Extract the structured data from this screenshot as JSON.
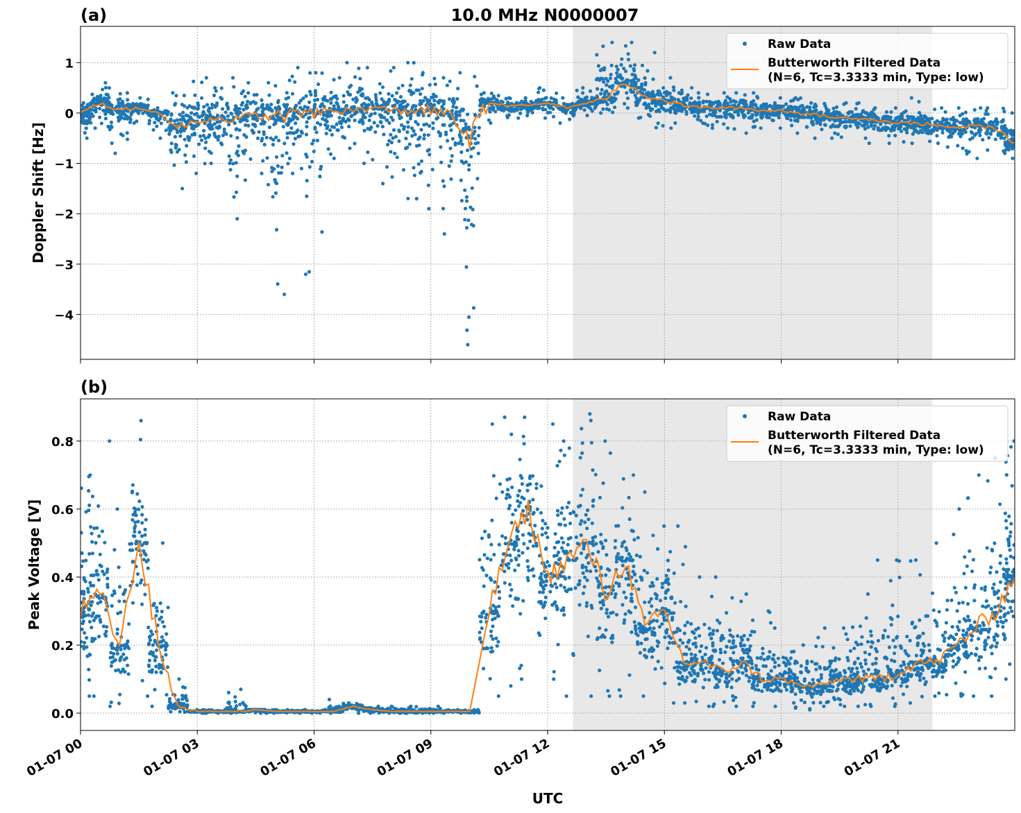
{
  "title": "10.0 MHz N0000007",
  "colors": {
    "raw": "#1f77b4",
    "filtered": "#ff7f0e",
    "shade": "#e8e8e8"
  },
  "x_axis": {
    "label": "UTC",
    "ticks": [
      "01-07 00",
      "01-07 03",
      "01-07 06",
      "01-07 09",
      "01-07 12",
      "01-07 15",
      "01-07 18",
      "01-07 21"
    ],
    "tick_hours": [
      0,
      3,
      6,
      9,
      12,
      15,
      18,
      21
    ],
    "xlim_hours": [
      0,
      24
    ]
  },
  "shaded_span": [
    "12:39",
    "21:53"
  ],
  "legend": {
    "raw": "Raw Data",
    "filtered_line1": "Butterworth Filtered Data",
    "filtered_line2": "(N=6, Tc=3.3333 min, Type: low)",
    "placement": "upper right"
  },
  "chart_data": [
    {
      "type": "scatter+line",
      "panel_label": "(a)",
      "ylabel": "Doppler Shift [Hz]",
      "ylim": [
        -4.89,
        1.72
      ],
      "yticks": [
        1,
        0,
        -1,
        -2,
        -3,
        -4
      ],
      "ytick_labels": [
        "1",
        "0",
        "−1",
        "−2",
        "−3",
        "−4"
      ],
      "grid": true,
      "x": [
        "00:00",
        "00:30",
        "01:00",
        "01:30",
        "02:00",
        "02:30",
        "03:00",
        "03:30",
        "04:00",
        "04:30",
        "05:00",
        "05:30",
        "06:00",
        "06:30",
        "07:00",
        "07:30",
        "08:00",
        "08:30",
        "09:00",
        "09:30",
        "10:00",
        "10:30",
        "11:00",
        "11:30",
        "12:00",
        "12:30",
        "13:00",
        "13:30",
        "14:00",
        "14:30",
        "15:00",
        "15:30",
        "16:00",
        "16:30",
        "17:00",
        "17:30",
        "18:00",
        "18:30",
        "19:00",
        "19:30",
        "20:00",
        "20:30",
        "21:00",
        "21:30",
        "22:00",
        "22:30",
        "23:00",
        "23:30",
        "24:00"
      ],
      "filtered": [
        0.0,
        0.2,
        0.05,
        0.1,
        0.0,
        -0.3,
        -0.15,
        -0.1,
        -0.15,
        -0.05,
        -0.1,
        0.0,
        0.0,
        0.05,
        0.05,
        0.1,
        0.05,
        0.05,
        0.05,
        -0.05,
        -0.5,
        0.2,
        0.15,
        0.15,
        0.2,
        0.1,
        0.2,
        0.3,
        0.6,
        0.35,
        0.25,
        0.15,
        0.1,
        0.1,
        0.1,
        0.05,
        0.05,
        0.0,
        -0.05,
        -0.1,
        -0.1,
        -0.15,
        -0.2,
        -0.2,
        -0.25,
        -0.3,
        -0.25,
        -0.3,
        -0.6
      ],
      "raw_min": [
        -0.5,
        -0.3,
        -0.8,
        -0.2,
        -0.5,
        -1.5,
        -1.2,
        -1.0,
        -2.1,
        -1.2,
        -3.6,
        -1.2,
        -3.2,
        -0.9,
        -0.7,
        -1.0,
        -1.4,
        -1.7,
        -1.9,
        -2.4,
        -4.6,
        -0.2,
        -0.1,
        -0.05,
        -0.1,
        -0.2,
        -0.05,
        0.0,
        0.1,
        -0.1,
        -0.3,
        -0.2,
        -0.3,
        -0.3,
        -0.4,
        -0.3,
        -0.3,
        -0.4,
        -0.5,
        -0.5,
        -0.5,
        -0.6,
        -0.6,
        -0.6,
        -0.6,
        -0.7,
        -0.9,
        -0.8,
        -0.9
      ],
      "raw_max": [
        0.2,
        0.6,
        0.4,
        0.3,
        0.1,
        0.4,
        0.7,
        0.5,
        0.7,
        0.6,
        0.6,
        0.9,
        0.8,
        0.7,
        1.0,
        0.9,
        0.9,
        1.0,
        0.8,
        0.7,
        0.8,
        0.4,
        0.3,
        0.3,
        0.5,
        0.3,
        0.5,
        1.4,
        1.4,
        1.2,
        0.7,
        0.5,
        0.4,
        0.4,
        0.4,
        0.4,
        0.3,
        0.3,
        0.2,
        0.2,
        0.2,
        0.1,
        0.1,
        0.3,
        0.1,
        0.1,
        0.1,
        0.1,
        0.0
      ]
    },
    {
      "type": "scatter+line",
      "panel_label": "(b)",
      "ylabel": "Peak Voltage [V]",
      "ylim": [
        -0.051,
        0.924
      ],
      "yticks": [
        0.8,
        0.6,
        0.4,
        0.2,
        0.0
      ],
      "ytick_labels": [
        "0.8",
        "0.6",
        "0.4",
        "0.2",
        "0.0"
      ],
      "grid": true,
      "x": [
        "00:00",
        "00:30",
        "01:00",
        "01:30",
        "02:00",
        "02:30",
        "03:00",
        "03:30",
        "04:00",
        "04:30",
        "05:00",
        "05:30",
        "06:00",
        "06:30",
        "07:00",
        "07:30",
        "08:00",
        "08:30",
        "09:00",
        "09:30",
        "10:00",
        "10:30",
        "11:00",
        "11:30",
        "12:00",
        "12:30",
        "13:00",
        "13:30",
        "14:00",
        "14:30",
        "15:00",
        "15:30",
        "16:00",
        "16:30",
        "17:00",
        "17:30",
        "18:00",
        "18:30",
        "19:00",
        "19:30",
        "20:00",
        "20:30",
        "21:00",
        "21:30",
        "22:00",
        "22:30",
        "23:00",
        "23:30",
        "24:00"
      ],
      "filtered": [
        0.3,
        0.35,
        0.2,
        0.5,
        0.2,
        0.02,
        0.005,
        0.005,
        0.005,
        0.01,
        0.005,
        0.005,
        0.005,
        0.005,
        0.02,
        0.01,
        0.005,
        0.005,
        0.005,
        0.005,
        0.005,
        0.3,
        0.5,
        0.6,
        0.4,
        0.45,
        0.5,
        0.35,
        0.45,
        0.25,
        0.3,
        0.15,
        0.15,
        0.12,
        0.15,
        0.1,
        0.1,
        0.08,
        0.08,
        0.1,
        0.1,
        0.1,
        0.12,
        0.15,
        0.15,
        0.2,
        0.25,
        0.3,
        0.4
      ],
      "raw_min": [
        0.05,
        0.05,
        0.02,
        0.05,
        0.02,
        0.003,
        0.0,
        0.0,
        0.0,
        0.0,
        0.0,
        0.0,
        0.0,
        0.0,
        0.0,
        0.0,
        0.0,
        0.0,
        0.0,
        0.0,
        0.0,
        0.05,
        0.08,
        0.1,
        0.1,
        0.05,
        0.05,
        0.05,
        0.05,
        0.05,
        0.03,
        0.03,
        0.02,
        0.02,
        0.02,
        0.02,
        0.02,
        0.01,
        0.02,
        0.02,
        0.02,
        0.02,
        0.02,
        0.03,
        0.05,
        0.05,
        0.05,
        0.05,
        0.1
      ],
      "raw_max": [
        0.7,
        0.8,
        0.6,
        0.86,
        0.5,
        0.1,
        0.01,
        0.01,
        0.07,
        0.01,
        0.01,
        0.01,
        0.01,
        0.04,
        0.03,
        0.02,
        0.02,
        0.02,
        0.02,
        0.01,
        0.01,
        0.85,
        0.87,
        0.87,
        0.85,
        0.8,
        0.88,
        0.8,
        0.7,
        0.65,
        0.55,
        0.55,
        0.4,
        0.4,
        0.35,
        0.3,
        0.25,
        0.2,
        0.25,
        0.25,
        0.35,
        0.45,
        0.45,
        0.45,
        0.5,
        0.6,
        0.7,
        0.75,
        0.8
      ]
    }
  ]
}
